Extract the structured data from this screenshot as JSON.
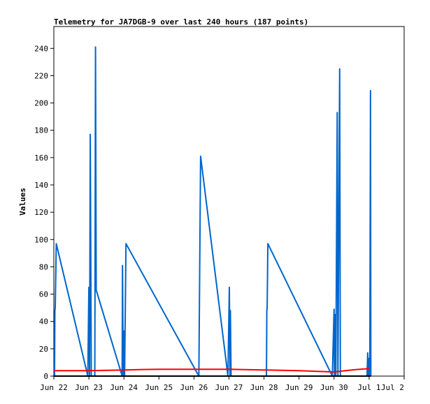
{
  "chart_data": {
    "type": "line",
    "title": "Telemetry for JA7DGB-9 over last 240 hours (187 points)",
    "xlabel": "",
    "ylabel": "Values",
    "x_tick_labels": [
      "Jun 22",
      "Jun 23",
      "Jun 24",
      "Jun 25",
      "Jun 26",
      "Jun 27",
      "Jun 28",
      "Jun 29",
      "Jun 30",
      "Jul 1",
      "Jul 2"
    ],
    "xlim": [
      0,
      10
    ],
    "ylim": [
      0,
      256
    ],
    "y_ticks": [
      0,
      20,
      40,
      60,
      80,
      100,
      120,
      140,
      160,
      180,
      200,
      220,
      240
    ],
    "grid": false,
    "legend": "none",
    "series": [
      {
        "color": "#0066cc",
        "points": [
          [
            0.02,
            0
          ],
          [
            0.03,
            48
          ],
          [
            0.04,
            50
          ],
          [
            0.07,
            97
          ],
          [
            0.97,
            0
          ],
          [
            1.0,
            65
          ],
          [
            1.02,
            0
          ],
          [
            1.04,
            177
          ],
          [
            1.07,
            0
          ],
          [
            1.17,
            0
          ],
          [
            1.19,
            241
          ],
          [
            1.21,
            63
          ],
          [
            1.95,
            0
          ],
          [
            1.96,
            81
          ],
          [
            1.98,
            0
          ],
          [
            2.0,
            33
          ],
          [
            2.02,
            0
          ],
          [
            2.06,
            97
          ],
          [
            4.14,
            0
          ],
          [
            4.19,
            161
          ],
          [
            4.97,
            0
          ],
          [
            5.01,
            65
          ],
          [
            5.03,
            0
          ],
          [
            5.04,
            48
          ],
          [
            5.06,
            0
          ],
          [
            6.07,
            0
          ],
          [
            6.08,
            48
          ],
          [
            6.09,
            50
          ],
          [
            6.11,
            97
          ],
          [
            7.95,
            0
          ],
          [
            8.0,
            49
          ],
          [
            8.01,
            0
          ],
          [
            8.03,
            45
          ],
          [
            8.05,
            0
          ],
          [
            8.09,
            193
          ],
          [
            8.11,
            0
          ],
          [
            8.16,
            225
          ],
          [
            8.18,
            0
          ],
          [
            8.94,
            0
          ],
          [
            8.96,
            17
          ],
          [
            8.98,
            0
          ],
          [
            9.0,
            13
          ],
          [
            9.02,
            0
          ],
          [
            9.04,
            209
          ],
          [
            9.05,
            0
          ]
        ]
      },
      {
        "color": "#ff0000",
        "points": [
          [
            0,
            4
          ],
          [
            1,
            4
          ],
          [
            2,
            4.5
          ],
          [
            2.5,
            4.8
          ],
          [
            3,
            5
          ],
          [
            4,
            5
          ],
          [
            5,
            5
          ],
          [
            6,
            4.5
          ],
          [
            7,
            4
          ],
          [
            8,
            3
          ],
          [
            8.5,
            4.5
          ],
          [
            9,
            5.5
          ]
        ]
      },
      {
        "color": "#000000",
        "points": [
          [
            0,
            0
          ],
          [
            9.05,
            0
          ]
        ]
      }
    ]
  }
}
